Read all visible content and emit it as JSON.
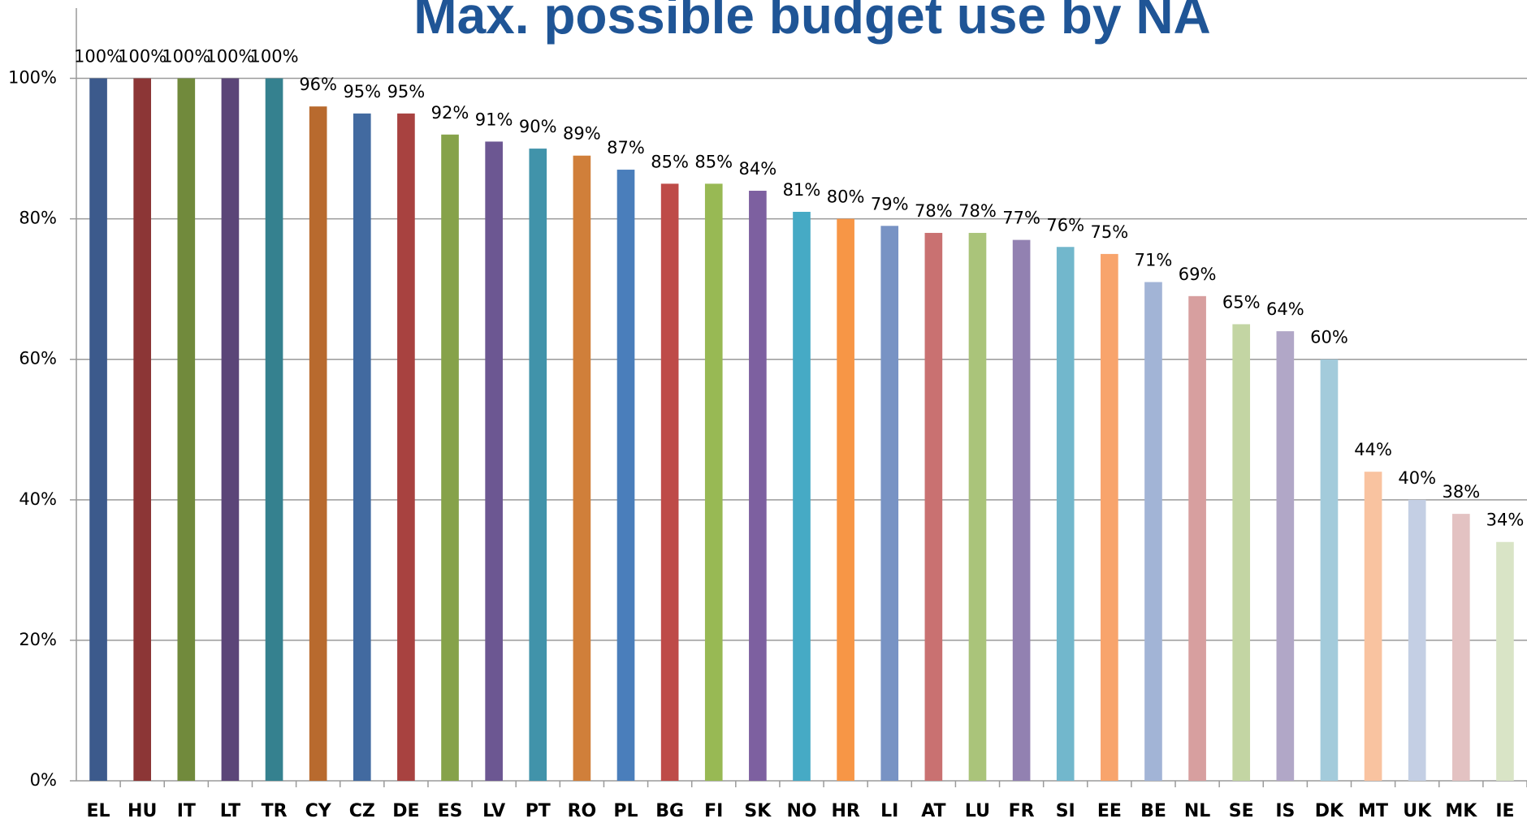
{
  "chart_data": {
    "type": "bar",
    "title": "Max. possible budget use by NA",
    "categories": [
      "EL",
      "HU",
      "IT",
      "LT",
      "TR",
      "CY",
      "CZ",
      "DE",
      "ES",
      "LV",
      "PT",
      "RO",
      "PL",
      "BG",
      "FI",
      "SK",
      "NO",
      "HR",
      "LI",
      "AT",
      "LU",
      "FR",
      "SI",
      "EE",
      "BE",
      "NL",
      "SE",
      "IS",
      "DK",
      "MT",
      "UK",
      "MK",
      "IE"
    ],
    "values": [
      100,
      100,
      100,
      100,
      100,
      96,
      95,
      95,
      92,
      91,
      90,
      89,
      87,
      85,
      85,
      84,
      81,
      80,
      79,
      78,
      78,
      77,
      76,
      75,
      71,
      69,
      65,
      64,
      60,
      44,
      40,
      38,
      34
    ],
    "value_labels": [
      "100%",
      "100%",
      "100%",
      "100%",
      "100%",
      "96%",
      "95%",
      "95%",
      "92%",
      "91%",
      "90%",
      "89%",
      "87%",
      "85%",
      "85%",
      "84%",
      "81%",
      "80%",
      "79%",
      "78%",
      "78%",
      "77%",
      "76%",
      "75%",
      "71%",
      "69%",
      "65%",
      "64%",
      "60%",
      "44%",
      "40%",
      "38%",
      "34%"
    ],
    "colors": [
      "#3c5a8c",
      "#8c3636",
      "#718a3c",
      "#5b4578",
      "#35818f",
      "#b86a2e",
      "#426aa0",
      "#a84240",
      "#86a24a",
      "#6c5792",
      "#4193aa",
      "#d07f3a",
      "#4a7ebb",
      "#be4b48",
      "#98b954",
      "#7d60a0",
      "#46aac5",
      "#f79646",
      "#7893c4",
      "#c97171",
      "#aac47a",
      "#9281b1",
      "#72b7cc",
      "#f8a46c",
      "#a2b4d6",
      "#d79f9f",
      "#c3d5a3",
      "#b1a7c7",
      "#a3cbdb",
      "#f9c3a0",
      "#c4cfe4",
      "#e3c2c2",
      "#d9e4c6"
    ],
    "ylim": [
      0,
      110
    ],
    "yticks": [
      {
        "value": 0,
        "label": "0%"
      },
      {
        "value": 20,
        "label": "20%"
      },
      {
        "value": 40,
        "label": "40%"
      },
      {
        "value": 60,
        "label": "60%"
      },
      {
        "value": 80,
        "label": "80%"
      },
      {
        "value": 100,
        "label": "100%"
      }
    ],
    "grid": true
  }
}
